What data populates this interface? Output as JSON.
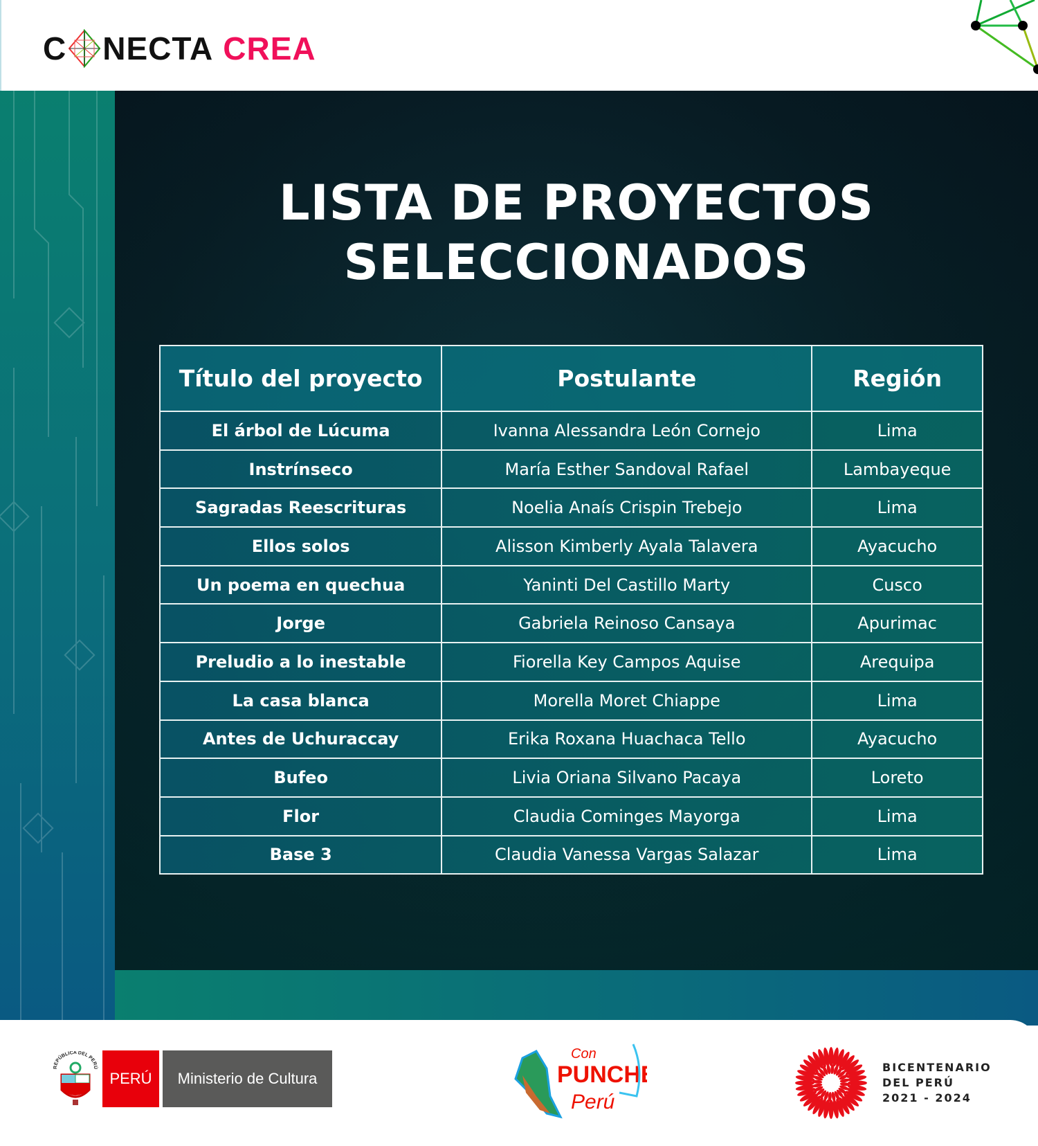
{
  "header": {
    "logo_dark_1": "C",
    "logo_dark_2": "NECTA",
    "logo_accent": "CREA",
    "accent_color": "#f0105a"
  },
  "title": {
    "line1": "LISTA DE PROYECTOS",
    "line2": "SELECCIONADOS"
  },
  "table": {
    "columns": [
      "Título del proyecto",
      "Postulante",
      "Región"
    ],
    "rows": [
      [
        "El árbol de Lúcuma",
        "Ivanna Alessandra León Cornejo",
        "Lima"
      ],
      [
        "Instrínseco",
        "María Esther Sandoval Rafael",
        "Lambayeque"
      ],
      [
        "Sagradas Reescrituras",
        "Noelia Anaís Crispin Trebejo",
        "Lima"
      ],
      [
        "Ellos solos",
        "Alisson Kimberly Ayala Talavera",
        "Ayacucho"
      ],
      [
        "Un poema en quechua",
        "Yaninti Del Castillo Marty",
        "Cusco"
      ],
      [
        "Jorge",
        "Gabriela Reinoso Cansaya",
        "Apurimac"
      ],
      [
        "Preludio a lo inestable",
        "Fiorella Key Campos Aquise",
        "Arequipa"
      ],
      [
        "La casa blanca",
        "Morella Moret Chiappe",
        "Lima"
      ],
      [
        "Antes de Uchuraccay",
        "Erika Roxana Huachaca Tello",
        "Ayacucho"
      ],
      [
        "Bufeo",
        "Livia Oriana Silvano Pacaya",
        "Loreto"
      ],
      [
        "Flor",
        "Claudia Cominges Mayorga",
        "Lima"
      ],
      [
        "Base 3",
        "Claudia Vanessa Vargas Salazar",
        "Lima"
      ]
    ]
  },
  "footer": {
    "peru": "PERÚ",
    "ministerio": "Ministerio de Cultura",
    "punche": [
      "Con",
      "PUNCHE",
      "Perú"
    ],
    "bicentenario": [
      "BICENTENARIO",
      "DEL PERÚ",
      "2021 - 2024"
    ],
    "coat_text": "REPÚBLICA DEL PERÚ"
  }
}
